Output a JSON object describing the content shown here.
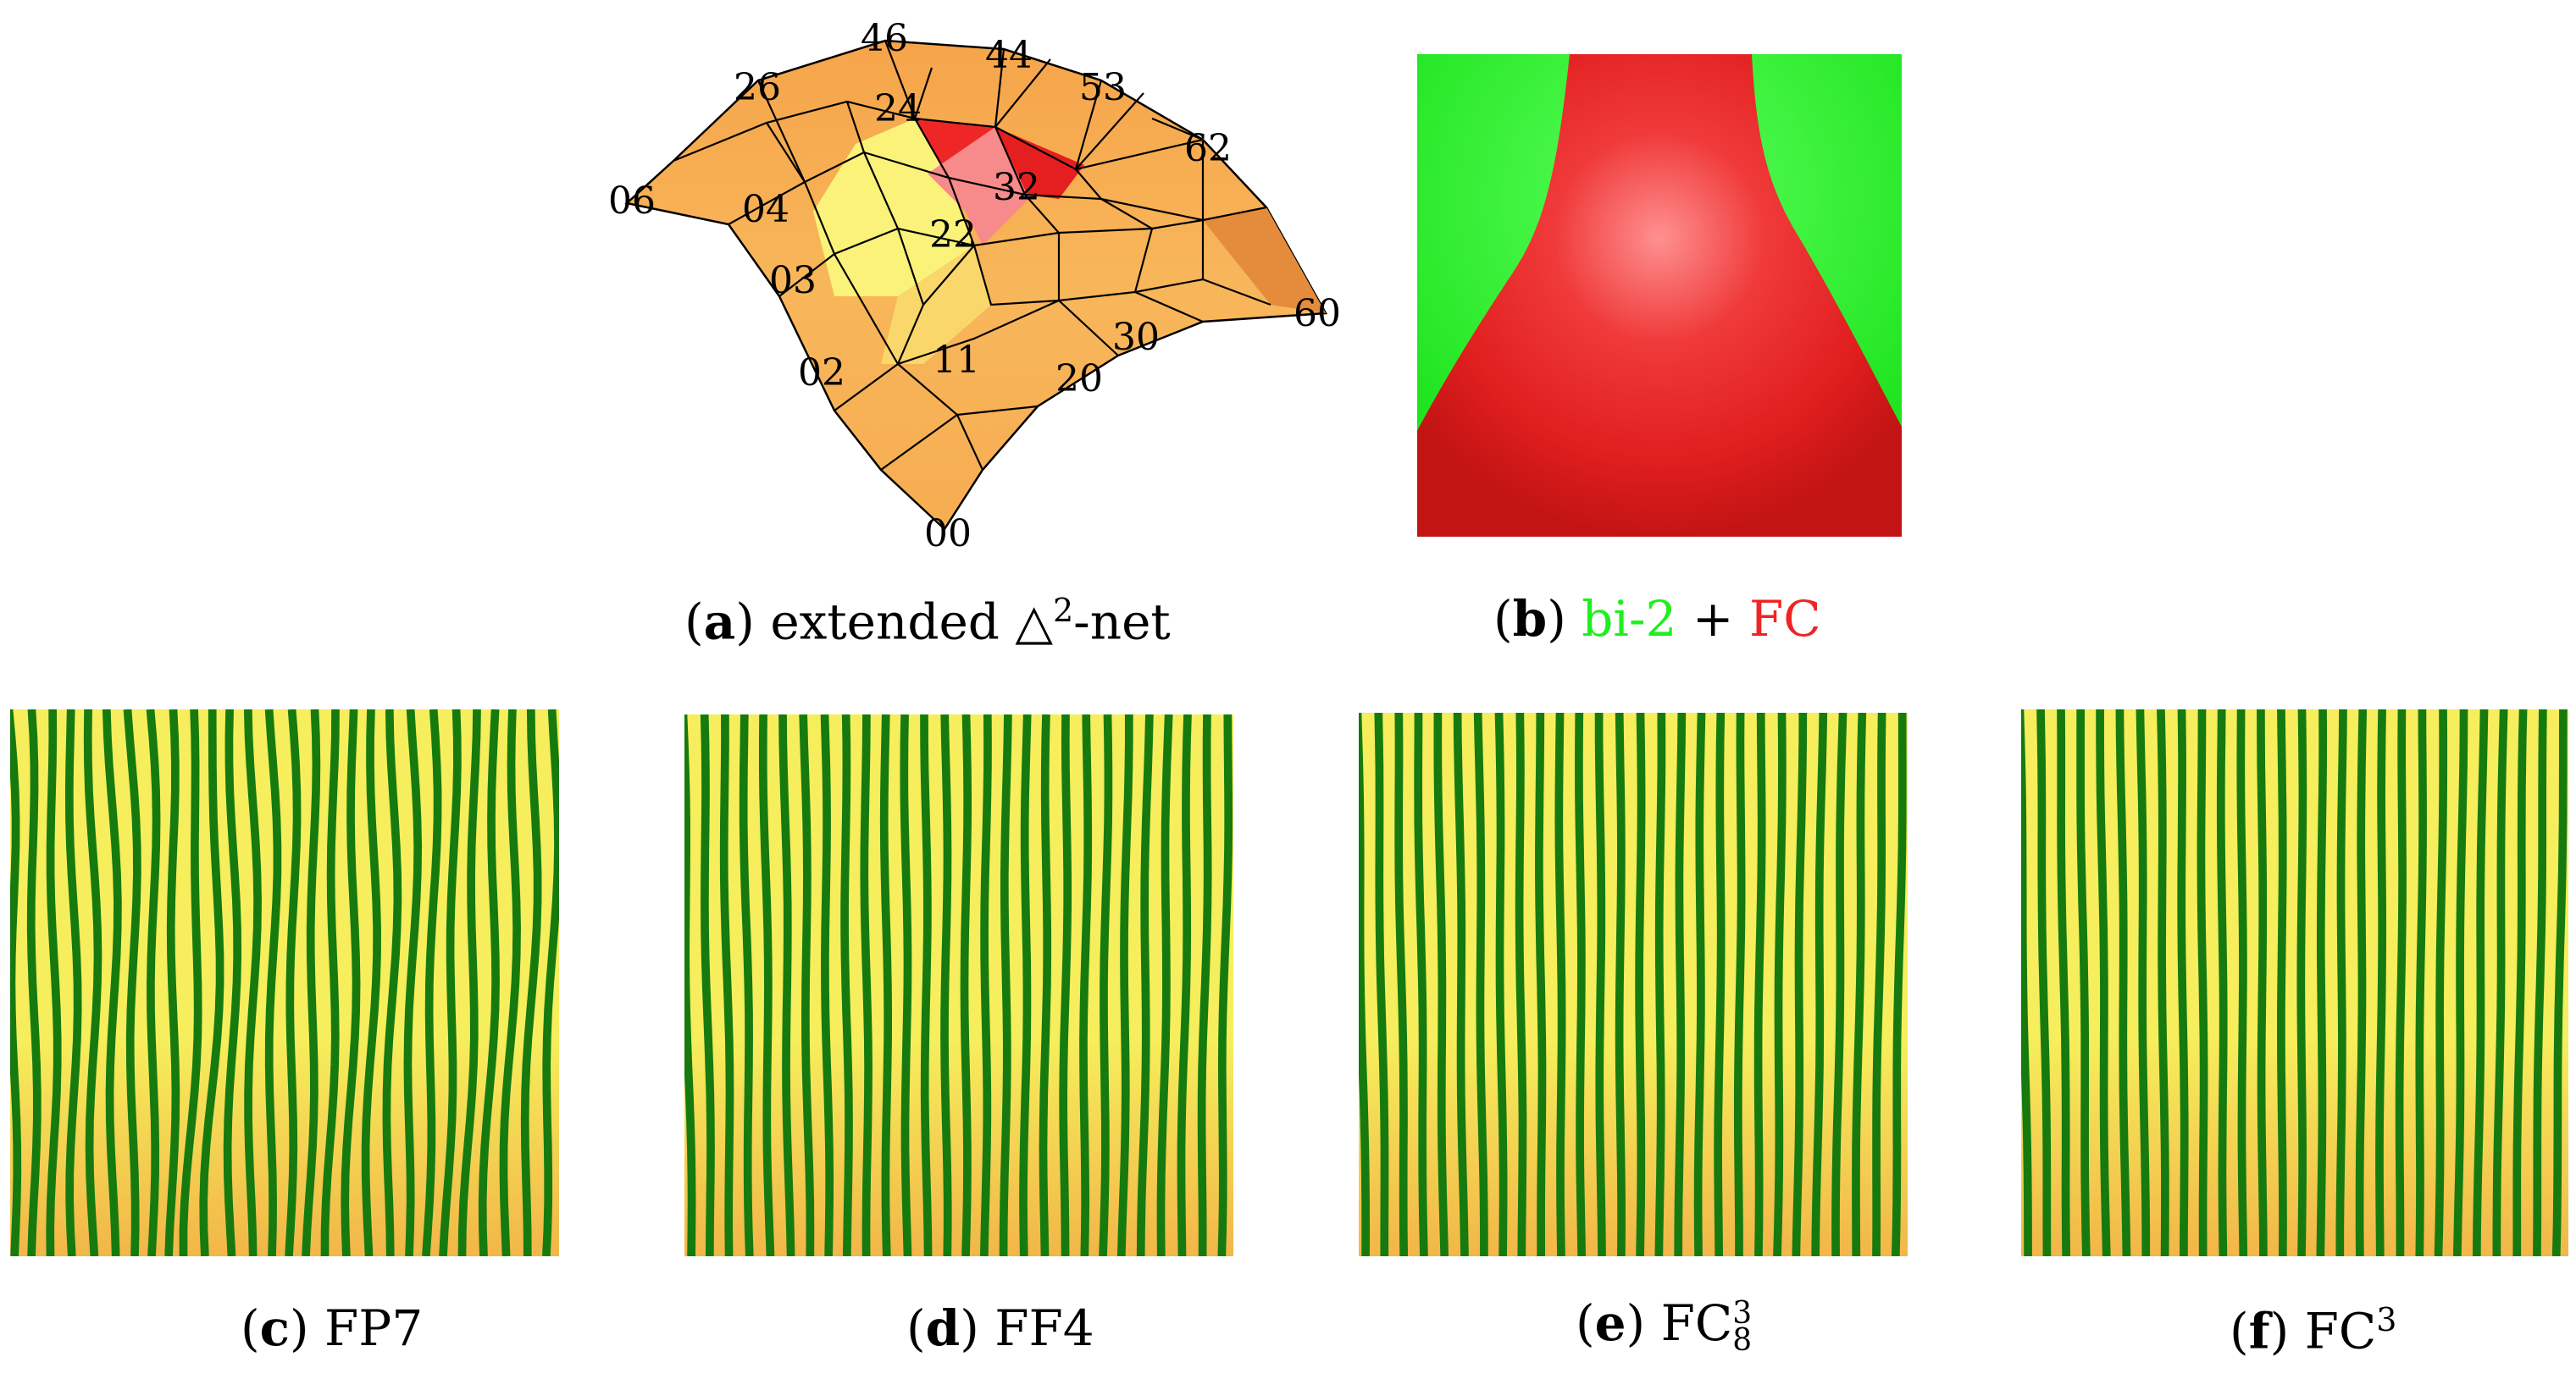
{
  "figure": {
    "panel_a": {
      "tag": "a",
      "caption": "extended △",
      "caption_sup": "2",
      "caption_tail": "-net",
      "vertex_labels": [
        "46",
        "44",
        "26",
        "24",
        "53",
        "62",
        "06",
        "04",
        "32",
        "22",
        "03",
        "60",
        "30",
        "11",
        "02",
        "20",
        "00"
      ],
      "colors": {
        "surface": "#f8b155",
        "highlight_yellow": "#fbf27a",
        "red": "#ef2626",
        "pink": "#f78a8a",
        "edge_dark": "#e28a3a"
      }
    },
    "panel_b": {
      "tag": "b",
      "caption_green": "bi-2",
      "caption_plus": "+",
      "caption_red": "FC",
      "colors": {
        "green": "#20ee20",
        "red": "#ef2424",
        "red_dark": "#c81616",
        "glow": "#ff8d8d"
      }
    },
    "stripe_panels": [
      {
        "tag": "c",
        "label": "FP7",
        "sub": "",
        "sup": ""
      },
      {
        "tag": "d",
        "label": "FF4",
        "sub": "",
        "sup": ""
      },
      {
        "tag": "e",
        "label": "FC",
        "sub": "8",
        "sup": "3"
      },
      {
        "tag": "f",
        "label": "FC",
        "sub": "",
        "sup": "3"
      }
    ],
    "stripe_colors": {
      "green": "#167a0e",
      "yellow": "#f6ee5c",
      "orange": "#f2b648"
    }
  }
}
